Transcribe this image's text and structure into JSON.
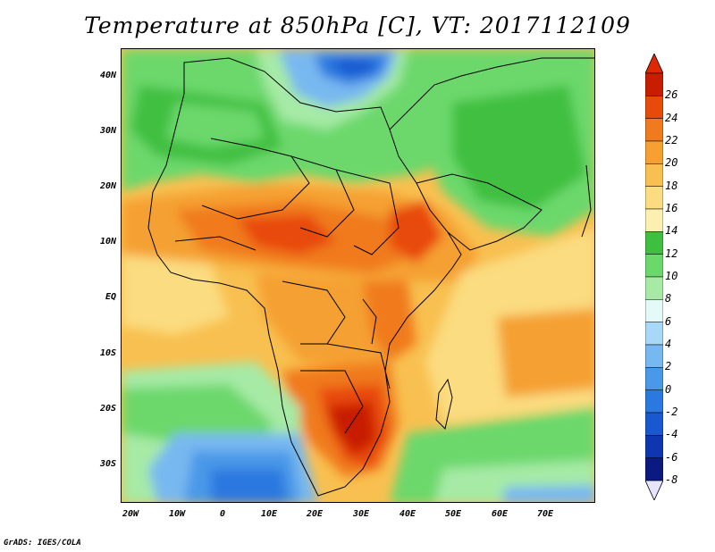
{
  "title": "Temperature at 850hPa [C], VT: 2017112109",
  "lat_labels": [
    "40N",
    "30N",
    "20N",
    "10N",
    "EQ",
    "10S",
    "20S",
    "30S"
  ],
  "lon_labels": [
    "20W",
    "10W",
    "0",
    "10E",
    "20E",
    "30E",
    "40E",
    "50E",
    "60E",
    "70E"
  ],
  "colorbar": {
    "labels": [
      "26",
      "24",
      "22",
      "20",
      "18",
      "16",
      "14",
      "12",
      "10",
      "8",
      "6",
      "4",
      "2",
      "0",
      "-2",
      "-4",
      "-6",
      "-8"
    ],
    "colors": [
      "#c81e00",
      "#e84a0a",
      "#f07a1e",
      "#f5a030",
      "#f8c050",
      "#fbdc80",
      "#fbf0b0",
      "#3fbf3f",
      "#6cd86c",
      "#a6eaa6",
      "#e4faf8",
      "#a8d8f8",
      "#78b8f0",
      "#4a98e8",
      "#2a78e0",
      "#1858d0",
      "#0e36b0",
      "#0a1a80"
    ]
  },
  "credit": "GrADS: IGES/COLA"
}
